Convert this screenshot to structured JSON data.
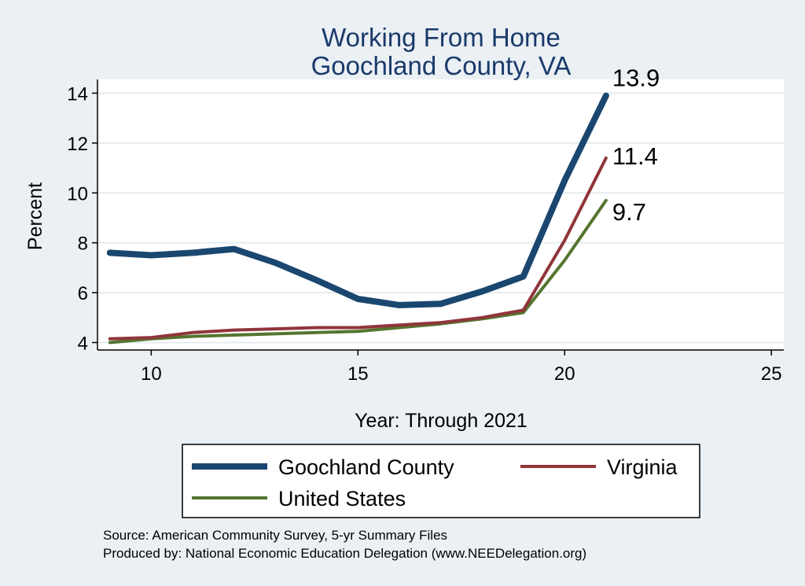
{
  "chart_data": {
    "type": "line",
    "title": [
      "Working From Home",
      "Goochland County, VA"
    ],
    "xlabel": "Year: Through 2021",
    "ylabel": "Percent",
    "xlim": [
      8.7,
      25.3
    ],
    "ylim": [
      3.7,
      14.55
    ],
    "xticks": [
      10,
      15,
      20,
      25
    ],
    "yticks": [
      4,
      6,
      8,
      10,
      12,
      14
    ],
    "grid": true,
    "legend_position": "bottom",
    "x": [
      9,
      10,
      11,
      12,
      13,
      14,
      15,
      16,
      17,
      18,
      19,
      20,
      21
    ],
    "series": [
      {
        "name": "Goochland County",
        "color": "#1a476f",
        "values": [
          7.6,
          7.5,
          7.6,
          7.75,
          7.2,
          6.5,
          5.75,
          5.5,
          5.55,
          6.05,
          6.65,
          10.5,
          13.9
        ],
        "end_label": "13.9"
      },
      {
        "name": "Virginia",
        "color": "#90353b",
        "values": [
          4.15,
          4.2,
          4.4,
          4.5,
          4.55,
          4.6,
          4.6,
          4.7,
          4.8,
          5.0,
          5.3,
          8.1,
          11.4
        ],
        "end_label": "11.4"
      },
      {
        "name": "United States",
        "color": "#55752f",
        "values": [
          4.0,
          4.15,
          4.25,
          4.3,
          4.35,
          4.4,
          4.45,
          4.6,
          4.75,
          4.95,
          5.2,
          7.3,
          9.7
        ],
        "end_label": "9.7"
      }
    ]
  },
  "notes": [
    "Source: American Community Survey, 5-yr Summary Files",
    "Produced by: National Economic Education Delegation (www.NEEDelegation.org)"
  ]
}
